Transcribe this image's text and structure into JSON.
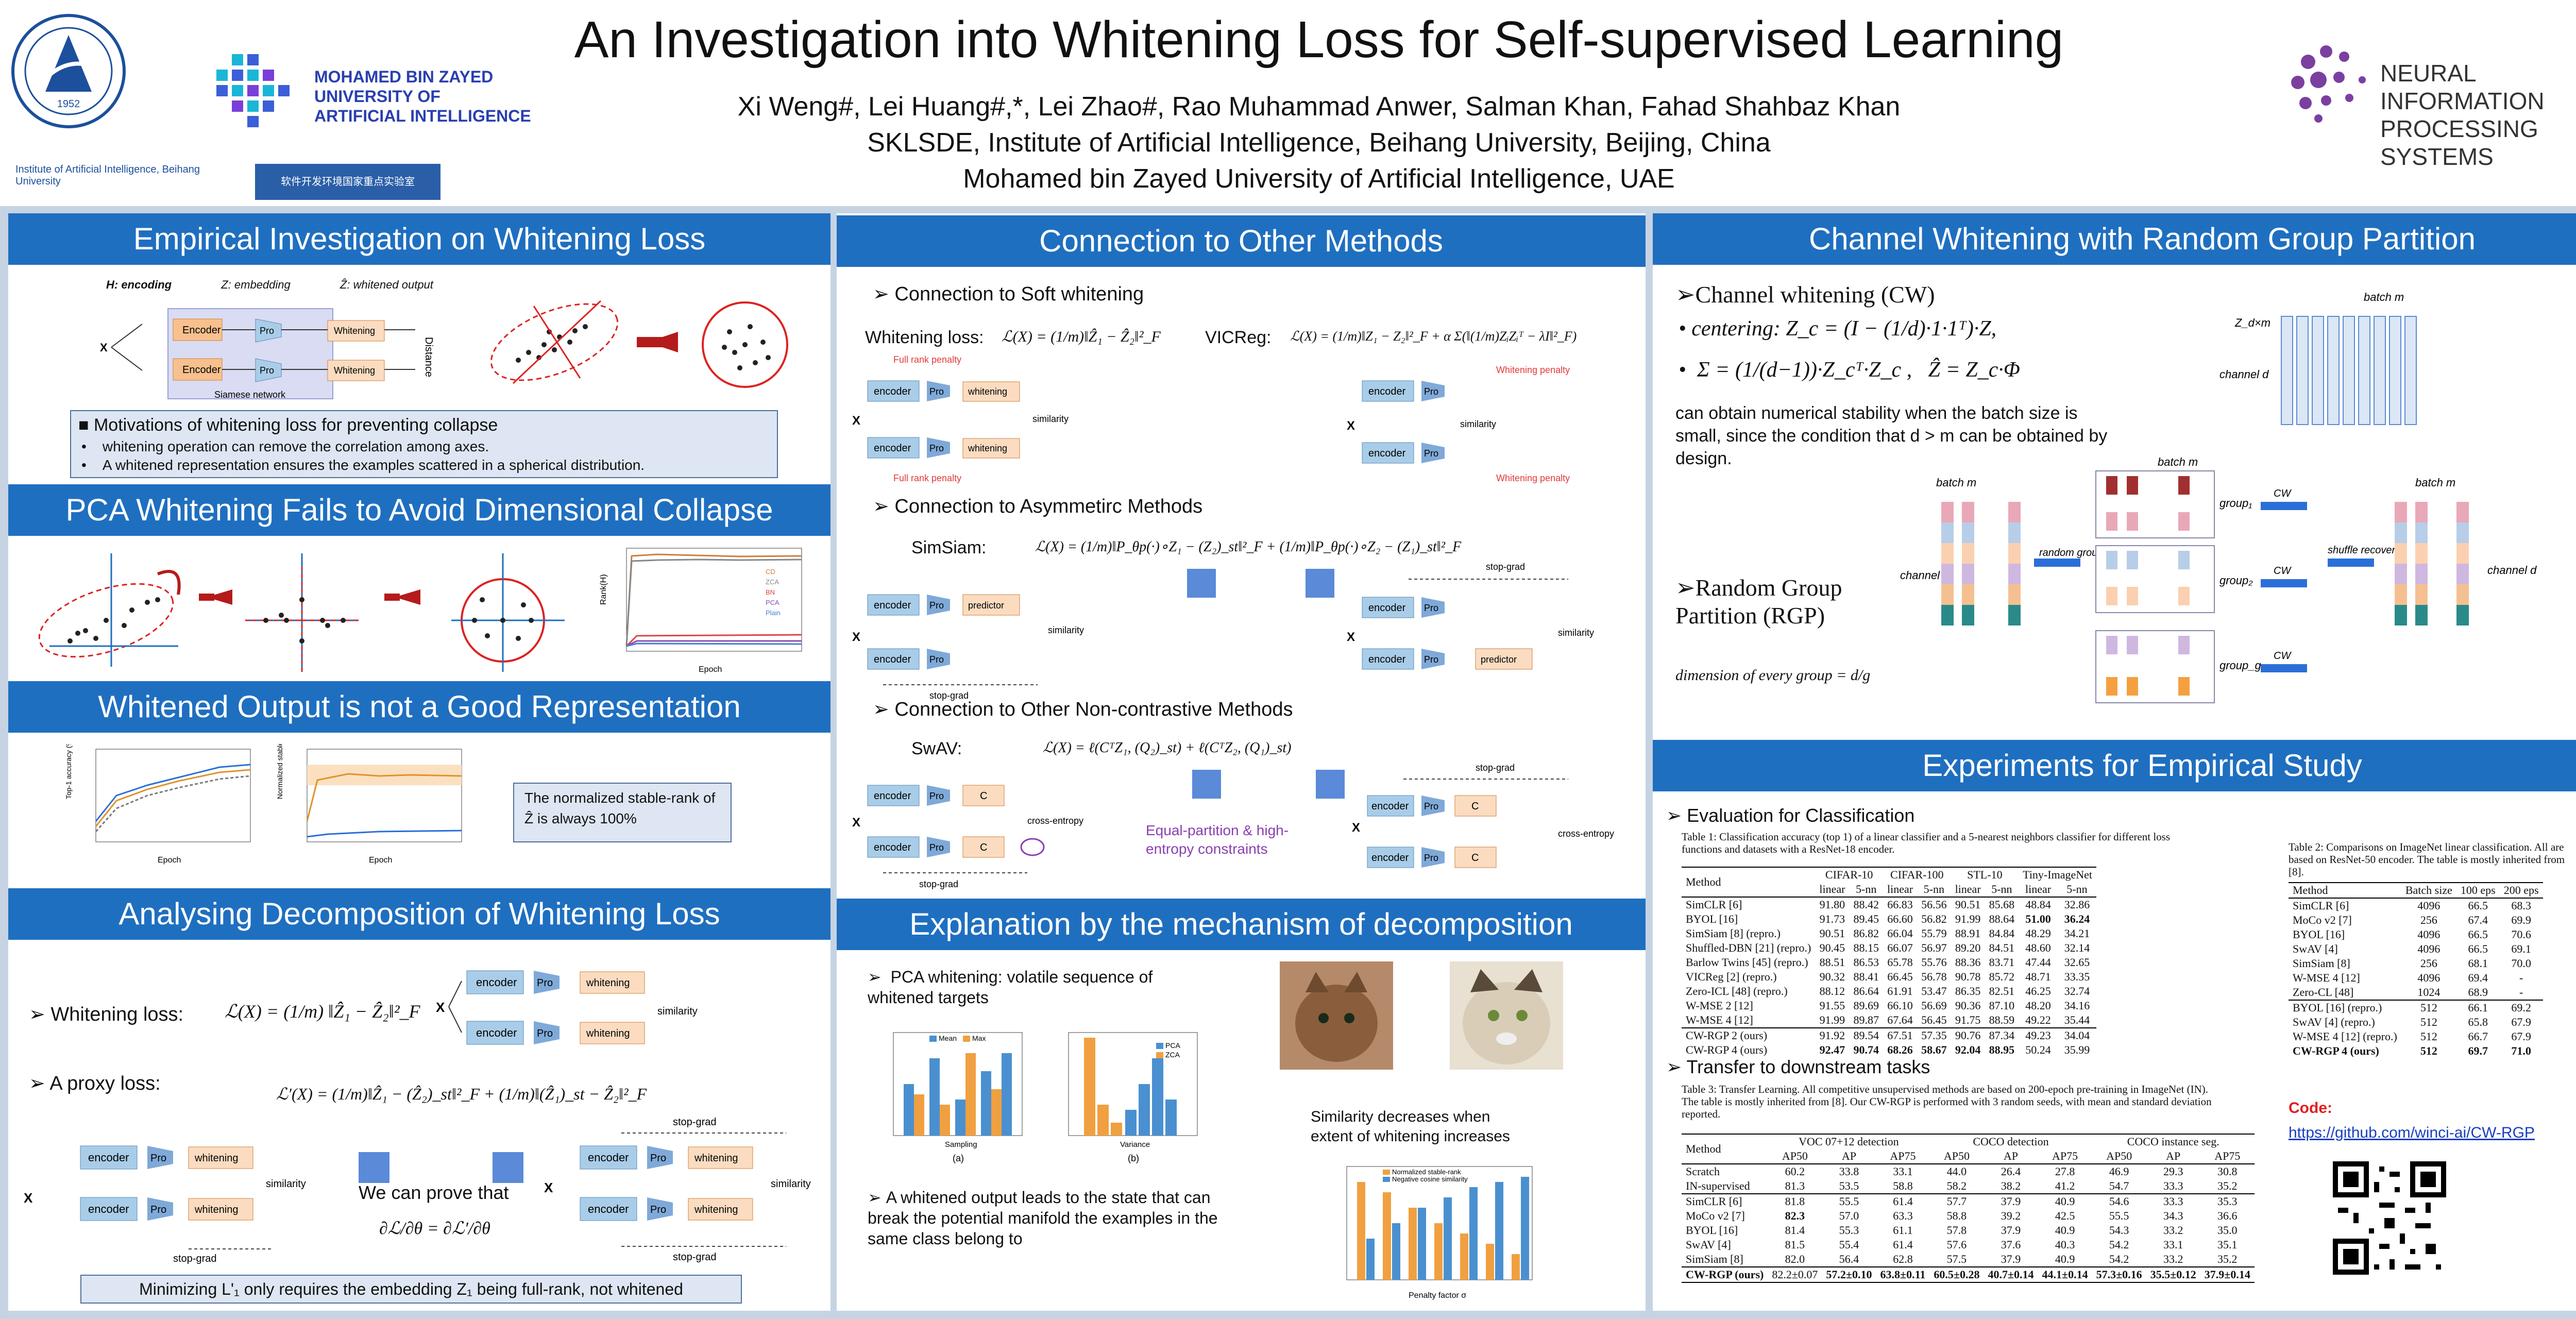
{
  "header": {
    "title": "An Investigation into Whitening Loss for Self-supervised Learning",
    "authors": "Xi Weng#, Lei Huang#,*, Lei Zhao#, Rao Muhammad Anwer, Salman Khan, Fahad Shahbaz Khan",
    "affil1": "SKLSDE, Institute of Artificial Intelligence,  Beihang University, Beijing, China",
    "affil2": "Mohamed bin Zayed University of Artificial Intelligence, UAE",
    "logo_mbzuai": [
      "MOHAMED BIN ZAYED",
      "UNIVERSITY OF",
      "ARTIFICIAL INTELLIGENCE"
    ],
    "logo_neurips": [
      "NEURAL INFORMATION",
      "PROCESSING SYSTEMS"
    ],
    "logo_buaa_year": "1952",
    "logo_buaa_text": "BEIHANG UNIVERSITY",
    "logo_ai_institute": "Institute of Artificial Intelligence, Beihang University",
    "logo_lab": "软件开发环境国家重点实验室"
  },
  "sections": {
    "s1": "Empirical Investigation on Whitening Loss",
    "s2": "PCA Whitening Fails to Avoid Dimensional Collapse",
    "s3": "Whitened Output is not a Good Representation",
    "s4": "Analysing Decomposition of Whitening Loss",
    "s5": "Connection to Other Methods",
    "s6": "Explanation by the mechanism of decomposition",
    "s7": "Channel Whitening with Random Group Partition",
    "s8": "Experiments for Empirical Study"
  },
  "s1": {
    "legend": [
      "H: encoding",
      "Z: embedding",
      "Ẑ: whitened output"
    ],
    "motivation_title": "Motivations of whitening loss for preventing collapse",
    "motivation_items": [
      "whitening operation can remove the correlation among axes.",
      "A whitened representation ensures the examples scattered in a spherical distribution."
    ],
    "siamese": "Siamese network",
    "distance": "Distance"
  },
  "s2": {
    "chart_legend": [
      "CD",
      "ZCA",
      "BN",
      "PCA",
      "Plain"
    ],
    "ylabel": "Rank(H)",
    "xlabel": "Epoch"
  },
  "s3": {
    "note": "The normalized stable-rank of Ẑ is always 100%",
    "ylabel_left": "Top-1 accuracy (%)",
    "ylabel_right": "Normalized stable-rank(%)",
    "xlabel": "Epoch"
  },
  "s4": {
    "whitening_loss": "Whitening loss:",
    "proxy_loss": "A proxy loss:",
    "prove": "We can prove that",
    "stopgrad": "stop-grad",
    "similarity": "similarity",
    "footer": "Minimizing L'₁ only requires the embedding Z₁ being full-rank, not whitened"
  },
  "s5": {
    "soft": "Connection to Soft whitening",
    "wl": "Whitening loss:",
    "vicreg": "VICReg:",
    "asym": "Connection to Asymmetirc Methods",
    "simsiam": "SimSiam:",
    "noncon": "Connection to Other Non-contrastive Methods",
    "swav": "SwAV:",
    "full_rank": "Full rank penalty",
    "whitening_penalty": "Whitening penalty",
    "equal": "Equal-partition & high-entropy constraints",
    "cross_entropy": "cross-entropy",
    "stop_grad": "stop-grad",
    "predictor": "predictor"
  },
  "s6": {
    "pca": "PCA whitening:  volatile sequence of whitened targets",
    "similarity": "Similarity decreases when extent of whitening increases",
    "whitened": "A whitened output leads to the state that can break the potential manifold the examples in the same class belong to",
    "legend_a": [
      "Mean",
      "Max"
    ],
    "legend_b": [
      "PCA",
      "ZCA"
    ],
    "legend_c": [
      "Normalized stable-rank",
      "Negative cosine similarity"
    ],
    "xlabel_a": "Sampling",
    "xlabel_b": "Variance",
    "xlabel_c": "Penalty factor σ",
    "cap_a": "(a)",
    "cap_b": "(b)"
  },
  "s7": {
    "cw": "Channel whitening (CW)",
    "centering": "centering:",
    "desc": "can obtain numerical stability when the batch size is small, since the condition that d > m can be obtained by design.",
    "rgp": "Random Group Partition (RGP)",
    "dim": "dimension of every group =",
    "batch_m": "batch m",
    "channel_d": "channel d",
    "random_group": "random group partition",
    "shuffle": "shuffle recover",
    "groups": [
      "group₁",
      "group₂",
      "group_g"
    ],
    "cw_label": "CW"
  },
  "s8": {
    "eval": "Evaluation for Classification",
    "table1_caption": "Table 1: Classification accuracy (top 1) of a linear classifier and a 5-nearest neighbors classifier for different loss functions and datasets with a ResNet-18 encoder.",
    "table1_groups": [
      "Method",
      "CIFAR-10",
      "CIFAR-100",
      "STL-10",
      "Tiny-ImageNet"
    ],
    "table1_sub": [
      "linear",
      "5-nn",
      "linear",
      "5-nn",
      "linear",
      "5-nn",
      "linear",
      "5-nn"
    ],
    "table1_rows": [
      [
        "SimCLR [6]",
        "91.80",
        "88.42",
        "66.83",
        "56.56",
        "90.51",
        "85.68",
        "48.84",
        "32.86"
      ],
      [
        "BYOL [16]",
        "91.73",
        "89.45",
        "66.60",
        "56.82",
        "91.99",
        "88.64",
        "51.00",
        "36.24"
      ],
      [
        "SimSiam [8] (repro.)",
        "90.51",
        "86.82",
        "66.04",
        "55.79",
        "88.91",
        "84.84",
        "48.29",
        "34.21"
      ],
      [
        "Shuffled-DBN [21] (repro.)",
        "90.45",
        "88.15",
        "66.07",
        "56.97",
        "89.20",
        "84.51",
        "48.60",
        "32.14"
      ],
      [
        "Barlow Twins [45] (repro.)",
        "88.51",
        "86.53",
        "65.78",
        "55.76",
        "88.36",
        "83.71",
        "47.44",
        "32.65"
      ],
      [
        "VICReg [2] (repro.)",
        "90.32",
        "88.41",
        "66.45",
        "56.78",
        "90.78",
        "85.72",
        "48.71",
        "33.35"
      ],
      [
        "Zero-ICL [48] (repro.)",
        "88.12",
        "86.64",
        "61.91",
        "53.47",
        "86.35",
        "82.51",
        "46.25",
        "32.74"
      ],
      [
        "W-MSE 2 [12]",
        "91.55",
        "89.69",
        "66.10",
        "56.69",
        "90.36",
        "87.10",
        "48.20",
        "34.16"
      ],
      [
        "W-MSE 4 [12]",
        "91.99",
        "89.87",
        "67.64",
        "56.45",
        "91.75",
        "88.59",
        "49.22",
        "35.44"
      ]
    ],
    "table1_ours": [
      [
        "CW-RGP 2 (ours)",
        "91.92",
        "89.54",
        "67.51",
        "57.35",
        "90.76",
        "87.34",
        "49.23",
        "34.04"
      ],
      [
        "CW-RGP 4 (ours)",
        "92.47",
        "90.74",
        "68.26",
        "58.67",
        "92.04",
        "88.95",
        "50.24",
        "35.99"
      ]
    ],
    "table2_caption": "Table 2: Comparisons on ImageNet linear classification. All are based on ResNet-50 encoder. The table is mostly inherited from [8].",
    "table2_head": [
      "Method",
      "Batch size",
      "100 eps",
      "200 eps"
    ],
    "table2_rows": [
      [
        "SimCLR [6]",
        "4096",
        "66.5",
        "68.3"
      ],
      [
        "MoCo v2 [7]",
        "256",
        "67.4",
        "69.9"
      ],
      [
        "BYOL [16]",
        "4096",
        "66.5",
        "70.6"
      ],
      [
        "SwAV [4]",
        "4096",
        "66.5",
        "69.1"
      ],
      [
        "SimSiam [8]",
        "256",
        "68.1",
        "70.0"
      ],
      [
        "W-MSE 4 [12]",
        "4096",
        "69.4",
        "-"
      ],
      [
        "Zero-CL [48]",
        "1024",
        "68.9",
        "-"
      ]
    ],
    "table2_small": [
      [
        "BYOL [16] (repro.)",
        "512",
        "66.1",
        "69.2"
      ],
      [
        "SwAV [4] (repro.)",
        "512",
        "65.8",
        "67.9"
      ],
      [
        "W-MSE 4 [12] (repro.)",
        "512",
        "66.7",
        "67.9"
      ],
      [
        "CW-RGP 4 (ours)",
        "512",
        "69.7",
        "71.0"
      ]
    ],
    "transfer": "Transfer to downstream tasks",
    "table3_caption": "Table 3: Transfer Learning.  All competitive unsupervised methods are based on 200-epoch pre-training in ImageNet (IN). The table is mostly inherited from [8]. Our CW-RGP is performed with 3 random seeds, with mean and standard deviation reported.",
    "table3_groups": [
      "Method",
      "VOC 07+12 detection",
      "COCO detection",
      "COCO instance seg."
    ],
    "table3_sub": [
      "AP50",
      "AP",
      "AP75",
      "AP50",
      "AP",
      "AP75",
      "AP50",
      "AP",
      "AP75"
    ],
    "table3_top": [
      [
        "Scratch",
        "60.2",
        "33.8",
        "33.1",
        "44.0",
        "26.4",
        "27.8",
        "46.9",
        "29.3",
        "30.8"
      ],
      [
        "IN-supervised",
        "81.3",
        "53.5",
        "58.8",
        "58.2",
        "38.2",
        "41.2",
        "54.7",
        "33.3",
        "35.2"
      ]
    ],
    "table3_rows": [
      [
        "SimCLR [6]",
        "81.8",
        "55.5",
        "61.4",
        "57.7",
        "37.9",
        "40.9",
        "54.6",
        "33.3",
        "35.3"
      ],
      [
        "MoCo v2 [7]",
        "82.3",
        "57.0",
        "63.3",
        "58.8",
        "39.2",
        "42.5",
        "55.5",
        "34.3",
        "36.6"
      ],
      [
        "BYOL [16]",
        "81.4",
        "55.3",
        "61.1",
        "57.8",
        "37.9",
        "40.9",
        "54.3",
        "33.2",
        "35.0"
      ],
      [
        "SwAV [4]",
        "81.5",
        "55.4",
        "61.4",
        "57.6",
        "37.6",
        "40.3",
        "54.2",
        "33.1",
        "35.1"
      ],
      [
        "SimSiam [8]",
        "82.0",
        "56.4",
        "62.8",
        "57.5",
        "37.9",
        "40.9",
        "54.2",
        "33.2",
        "35.2"
      ]
    ],
    "table3_ours": [
      "CW-RGP (ours)",
      "82.2±0.07",
      "57.2±0.10",
      "63.8±0.11",
      "60.5±0.28",
      "40.7±0.14",
      "44.1±0.14",
      "57.3±0.16",
      "35.5±0.12",
      "37.9±0.14"
    ],
    "code_label": "Code:",
    "code_url": "https://github.com/winci-ai/CW-RGP"
  },
  "colors": {
    "section_blue": "#1f6fc0",
    "encoder_blue": "#a9cde8",
    "whitening_orange": "#fbdcc0",
    "penalty_red": "#e23b3b",
    "code_red": "#e02020"
  }
}
